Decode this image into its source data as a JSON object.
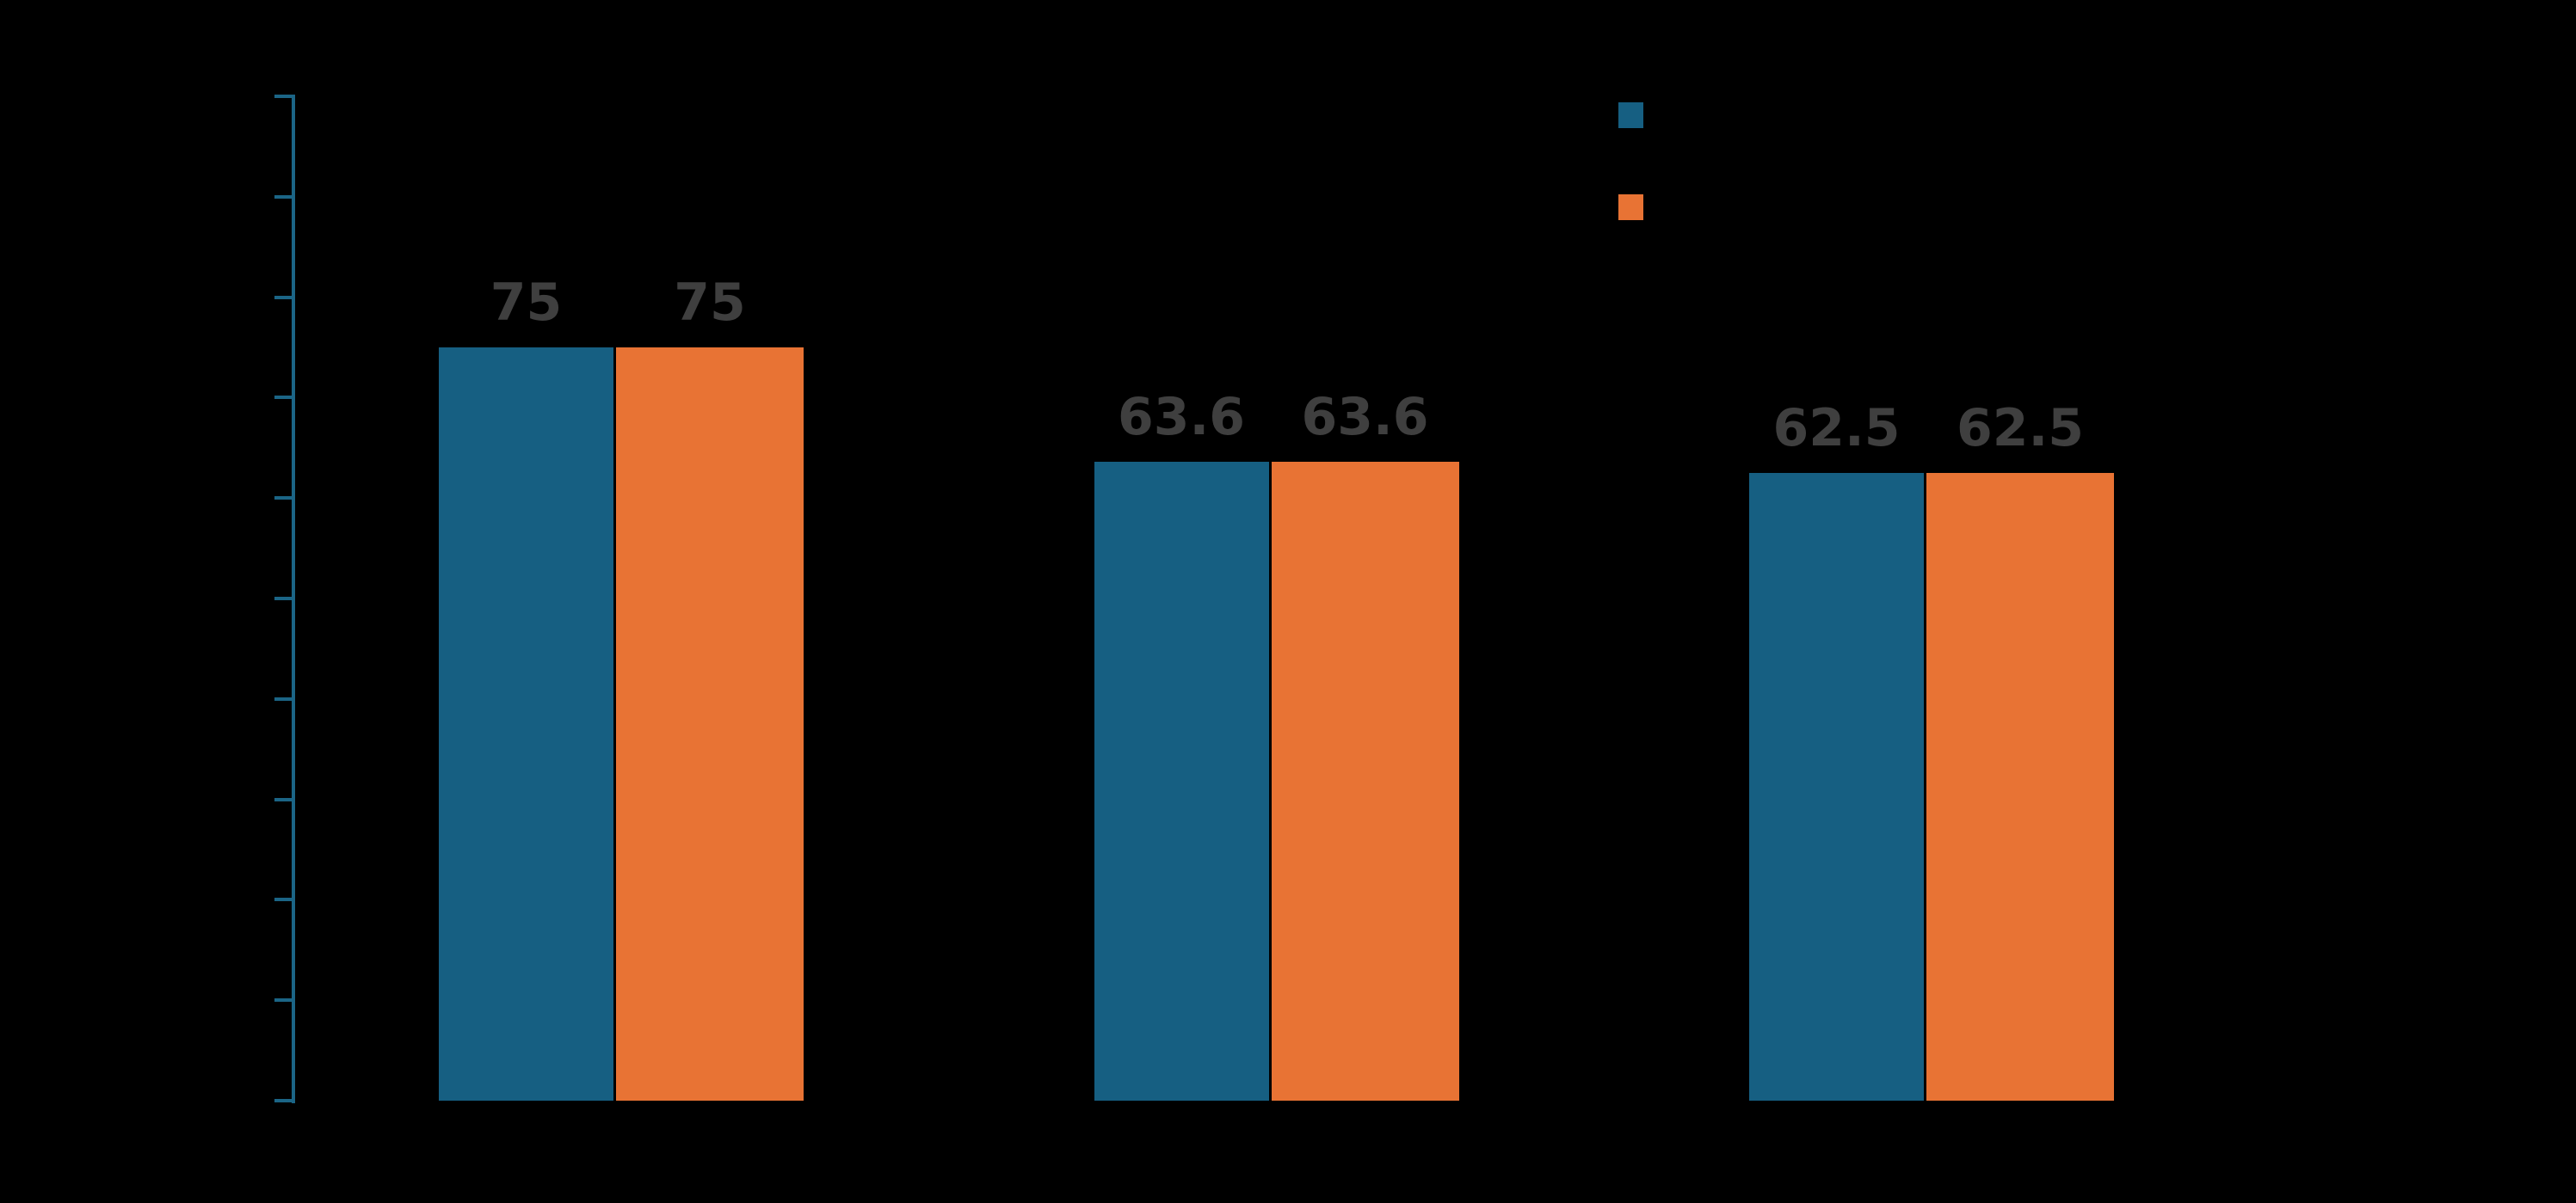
{
  "chart_data": {
    "type": "bar",
    "title": "",
    "xlabel": "",
    "ylabel": "",
    "categories": [
      "",
      "",
      ""
    ],
    "series": [
      {
        "name": "",
        "color": "#165F82",
        "values": [
          75,
          63.6,
          62.5
        ]
      },
      {
        "name": "",
        "color": "#E87334",
        "values": [
          75,
          63.6,
          62.5
        ]
      }
    ],
    "bar_labels": [
      [
        "75",
        "63.6",
        "62.5"
      ],
      [
        "75",
        "63.6",
        "62.5"
      ]
    ],
    "ylim": [
      0,
      100
    ],
    "ytick_step": 10,
    "yticks": [
      0,
      10,
      20,
      30,
      40,
      50,
      60,
      70,
      80,
      90,
      100
    ],
    "grid": false,
    "legend": {
      "position": "upper-right",
      "entries": [
        {
          "label": "",
          "color": "#165F82"
        },
        {
          "label": "",
          "color": "#E87334"
        }
      ]
    },
    "colors": {
      "background": "#000000",
      "axis": "#1B6586",
      "value_label": "#3F3F3F"
    }
  }
}
